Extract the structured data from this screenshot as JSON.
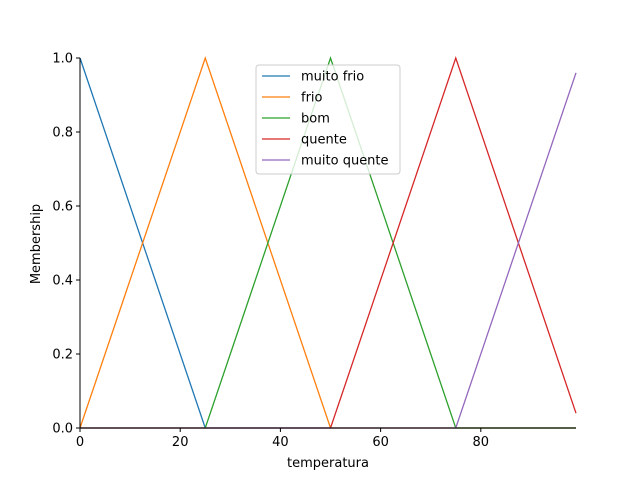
{
  "chart_data": {
    "type": "line",
    "title": "",
    "xlabel": "temperatura",
    "ylabel": "Membership",
    "xlim": [
      0,
      99
    ],
    "ylim": [
      0,
      1.0
    ],
    "x_ticks": [
      0,
      20,
      40,
      60,
      80
    ],
    "x_tick_labels": [
      "0",
      "20",
      "40",
      "60",
      "80"
    ],
    "y_ticks": [
      0.0,
      0.2,
      0.4,
      0.6,
      0.8,
      1.0
    ],
    "y_tick_labels": [
      "0.0",
      "0.2",
      "0.4",
      "0.6",
      "0.8",
      "1.0"
    ],
    "grid": false,
    "legend_position": "upper-center",
    "series": [
      {
        "name": "muito frio",
        "color": "#1f77b4",
        "x": [
          0,
          25,
          99
        ],
        "y": [
          1.0,
          0.0,
          0.0
        ]
      },
      {
        "name": "frio",
        "color": "#ff7f0e",
        "x": [
          0,
          25,
          50,
          99
        ],
        "y": [
          0.0,
          1.0,
          0.0,
          0.0
        ]
      },
      {
        "name": "bom",
        "color": "#2ca02c",
        "x": [
          0,
          25,
          50,
          75,
          99
        ],
        "y": [
          0.0,
          0.0,
          1.0,
          0.0,
          0.0
        ]
      },
      {
        "name": "quente",
        "color": "#d62728",
        "x": [
          0,
          50,
          75,
          99
        ],
        "y": [
          0.0,
          0.0,
          1.0,
          0.04
        ]
      },
      {
        "name": "muito quente",
        "color": "#9467bd",
        "x": [
          0,
          75,
          99
        ],
        "y": [
          0.0,
          0.0,
          0.96
        ]
      }
    ]
  }
}
